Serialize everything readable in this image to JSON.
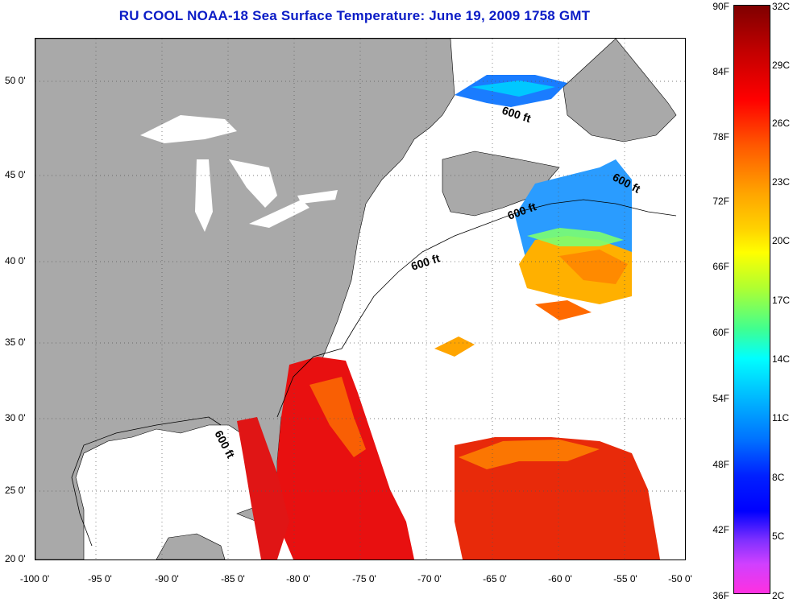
{
  "title": "RU COOL  NOAA-18  Sea Surface Temperature:  June 19, 2009 1758 GMT",
  "x_ticks": [
    "-100 0'",
    "-95 0'",
    "-90 0'",
    "-85 0'",
    "-80 0'",
    "-75 0'",
    "-70 0'",
    "-65 0'",
    "-60 0'",
    "-55 0'",
    "-50 0'"
  ],
  "y_ticks": [
    "50 0'",
    "45 0'",
    "40 0'",
    "35 0'",
    "30 0'",
    "25 0'",
    "20 0'"
  ],
  "contour_label": "600 ft",
  "colorbar_f": [
    "90F",
    "84F",
    "78F",
    "72F",
    "66F",
    "60F",
    "54F",
    "48F",
    "42F",
    "36F"
  ],
  "colorbar_c": [
    "32C",
    "29C",
    "26C",
    "23C",
    "20C",
    "17C",
    "14C",
    "11C",
    "8C",
    "5C",
    "2C"
  ],
  "colors": {
    "title": "#0b1cc6",
    "land": "#a9a9a9",
    "no_data": "#ffffff"
  }
}
